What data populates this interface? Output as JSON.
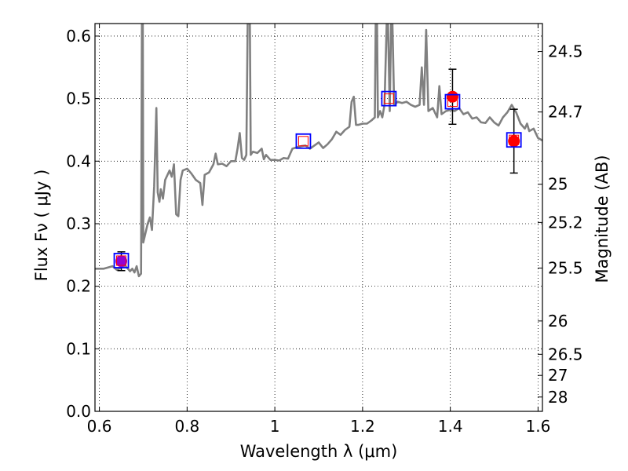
{
  "chart_data": {
    "type": "scatter",
    "xlabel": "Wavelength  λ (μm)",
    "ylabel": "Flux  Fν  ( μJy )",
    "y2label": "Magnitude (AB)",
    "xlim": [
      0.59,
      1.61
    ],
    "ylim": [
      0.0,
      0.62
    ],
    "grid": true,
    "x_ticks": [
      {
        "value": 0.6,
        "label": "0.6"
      },
      {
        "value": 0.8,
        "label": "0.8"
      },
      {
        "value": 1.0,
        "label": "1"
      },
      {
        "value": 1.2,
        "label": "1.2"
      },
      {
        "value": 1.4,
        "label": "1.4"
      },
      {
        "value": 1.6,
        "label": "1.6"
      }
    ],
    "y_ticks": [
      {
        "value": 0.0,
        "label": "0.0"
      },
      {
        "value": 0.1,
        "label": "0.1"
      },
      {
        "value": 0.2,
        "label": "0.2"
      },
      {
        "value": 0.3,
        "label": "0.3"
      },
      {
        "value": 0.4,
        "label": "0.4"
      },
      {
        "value": 0.5,
        "label": "0.5"
      },
      {
        "value": 0.6,
        "label": "0.6"
      }
    ],
    "y2_ticks": [
      {
        "flux": 0.5754,
        "label": "24.5"
      },
      {
        "flux": 0.4786,
        "label": "24.7"
      },
      {
        "flux": 0.3631,
        "label": "25"
      },
      {
        "flux": 0.302,
        "label": "25.2"
      },
      {
        "flux": 0.2291,
        "label": "25.5"
      },
      {
        "flux": 0.1445,
        "label": "26"
      },
      {
        "flux": 0.0912,
        "label": "26.5"
      },
      {
        "flux": 0.0575,
        "label": "27"
      },
      {
        "flux": 0.0229,
        "label": "28"
      }
    ],
    "model_spectrum": {
      "color": "#808080",
      "points": [
        [
          0.59,
          0.228
        ],
        [
          0.61,
          0.228
        ],
        [
          0.63,
          0.232
        ],
        [
          0.64,
          0.226
        ],
        [
          0.65,
          0.23
        ],
        [
          0.66,
          0.232
        ],
        [
          0.67,
          0.224
        ],
        [
          0.675,
          0.228
        ],
        [
          0.68,
          0.222
        ],
        [
          0.685,
          0.232
        ],
        [
          0.69,
          0.216
        ],
        [
          0.695,
          0.22
        ],
        [
          0.697,
          0.62
        ],
        [
          0.699,
          0.62
        ],
        [
          0.7,
          0.27
        ],
        [
          0.705,
          0.285
        ],
        [
          0.71,
          0.3
        ],
        [
          0.715,
          0.31
        ],
        [
          0.72,
          0.29
        ],
        [
          0.725,
          0.36
        ],
        [
          0.73,
          0.485
        ],
        [
          0.733,
          0.35
        ],
        [
          0.737,
          0.335
        ],
        [
          0.74,
          0.355
        ],
        [
          0.745,
          0.34
        ],
        [
          0.75,
          0.37
        ],
        [
          0.76,
          0.385
        ],
        [
          0.765,
          0.375
        ],
        [
          0.77,
          0.395
        ],
        [
          0.775,
          0.315
        ],
        [
          0.78,
          0.312
        ],
        [
          0.785,
          0.37
        ],
        [
          0.79,
          0.385
        ],
        [
          0.8,
          0.388
        ],
        [
          0.81,
          0.38
        ],
        [
          0.82,
          0.37
        ],
        [
          0.83,
          0.365
        ],
        [
          0.835,
          0.33
        ],
        [
          0.84,
          0.378
        ],
        [
          0.85,
          0.382
        ],
        [
          0.86,
          0.395
        ],
        [
          0.865,
          0.412
        ],
        [
          0.87,
          0.395
        ],
        [
          0.88,
          0.396
        ],
        [
          0.89,
          0.392
        ],
        [
          0.9,
          0.4
        ],
        [
          0.91,
          0.4
        ],
        [
          0.915,
          0.42
        ],
        [
          0.92,
          0.445
        ],
        [
          0.925,
          0.405
        ],
        [
          0.93,
          0.402
        ],
        [
          0.935,
          0.41
        ],
        [
          0.938,
          0.62
        ],
        [
          0.943,
          0.62
        ],
        [
          0.945,
          0.41
        ],
        [
          0.95,
          0.415
        ],
        [
          0.96,
          0.413
        ],
        [
          0.97,
          0.42
        ],
        [
          0.975,
          0.403
        ],
        [
          0.98,
          0.41
        ],
        [
          0.99,
          0.402
        ],
        [
          1.0,
          0.402
        ],
        [
          1.01,
          0.401
        ],
        [
          1.02,
          0.405
        ],
        [
          1.03,
          0.404
        ],
        [
          1.04,
          0.42
        ],
        [
          1.06,
          0.424
        ],
        [
          1.07,
          0.425
        ],
        [
          1.08,
          0.42
        ],
        [
          1.09,
          0.425
        ],
        [
          1.1,
          0.43
        ],
        [
          1.11,
          0.421
        ],
        [
          1.12,
          0.427
        ],
        [
          1.13,
          0.435
        ],
        [
          1.14,
          0.447
        ],
        [
          1.15,
          0.442
        ],
        [
          1.16,
          0.45
        ],
        [
          1.17,
          0.455
        ],
        [
          1.175,
          0.495
        ],
        [
          1.18,
          0.503
        ],
        [
          1.185,
          0.458
        ],
        [
          1.19,
          0.458
        ],
        [
          1.2,
          0.46
        ],
        [
          1.21,
          0.46
        ],
        [
          1.22,
          0.465
        ],
        [
          1.228,
          0.47
        ],
        [
          1.23,
          0.62
        ],
        [
          1.233,
          0.62
        ],
        [
          1.235,
          0.47
        ],
        [
          1.24,
          0.48
        ],
        [
          1.245,
          0.47
        ],
        [
          1.25,
          0.49
        ],
        [
          1.255,
          0.62
        ],
        [
          1.258,
          0.62
        ],
        [
          1.262,
          0.48
        ],
        [
          1.265,
          0.62
        ],
        [
          1.268,
          0.62
        ],
        [
          1.272,
          0.49
        ],
        [
          1.28,
          0.495
        ],
        [
          1.29,
          0.493
        ],
        [
          1.3,
          0.495
        ],
        [
          1.31,
          0.49
        ],
        [
          1.32,
          0.487
        ],
        [
          1.33,
          0.49
        ],
        [
          1.335,
          0.55
        ],
        [
          1.34,
          0.49
        ],
        [
          1.345,
          0.61
        ],
        [
          1.35,
          0.48
        ],
        [
          1.36,
          0.485
        ],
        [
          1.37,
          0.47
        ],
        [
          1.375,
          0.52
        ],
        [
          1.38,
          0.475
        ],
        [
          1.39,
          0.48
        ],
        [
          1.4,
          0.482
        ],
        [
          1.41,
          0.48
        ],
        [
          1.42,
          0.485
        ],
        [
          1.43,
          0.475
        ],
        [
          1.44,
          0.478
        ],
        [
          1.45,
          0.468
        ],
        [
          1.46,
          0.47
        ],
        [
          1.47,
          0.462
        ],
        [
          1.48,
          0.461
        ],
        [
          1.49,
          0.47
        ],
        [
          1.5,
          0.462
        ],
        [
          1.51,
          0.457
        ],
        [
          1.52,
          0.47
        ],
        [
          1.53,
          0.478
        ],
        [
          1.54,
          0.49
        ],
        [
          1.55,
          0.478
        ],
        [
          1.56,
          0.46
        ],
        [
          1.57,
          0.452
        ],
        [
          1.575,
          0.46
        ],
        [
          1.58,
          0.448
        ],
        [
          1.59,
          0.452
        ],
        [
          1.6,
          0.437
        ],
        [
          1.61,
          0.433
        ]
      ]
    },
    "model_photometry": {
      "marker": "open-square",
      "outer_color": "#0000ff",
      "inner_color": "#ff0000",
      "points": [
        {
          "x": 0.65,
          "y": 0.241
        },
        {
          "x": 1.065,
          "y": 0.432
        },
        {
          "x": 1.26,
          "y": 0.5
        },
        {
          "x": 1.405,
          "y": 0.495
        },
        {
          "x": 1.545,
          "y": 0.434
        }
      ]
    },
    "observed_photometry": {
      "marker": "filled-circle",
      "points": [
        {
          "x": 0.65,
          "y": 0.24,
          "err": 0.015,
          "color": "#9400d3"
        },
        {
          "x": 1.405,
          "y": 0.503,
          "err": 0.044,
          "color": "#ff0000"
        },
        {
          "x": 1.545,
          "y": 0.432,
          "err": 0.051,
          "color": "#ff0000"
        }
      ]
    }
  }
}
